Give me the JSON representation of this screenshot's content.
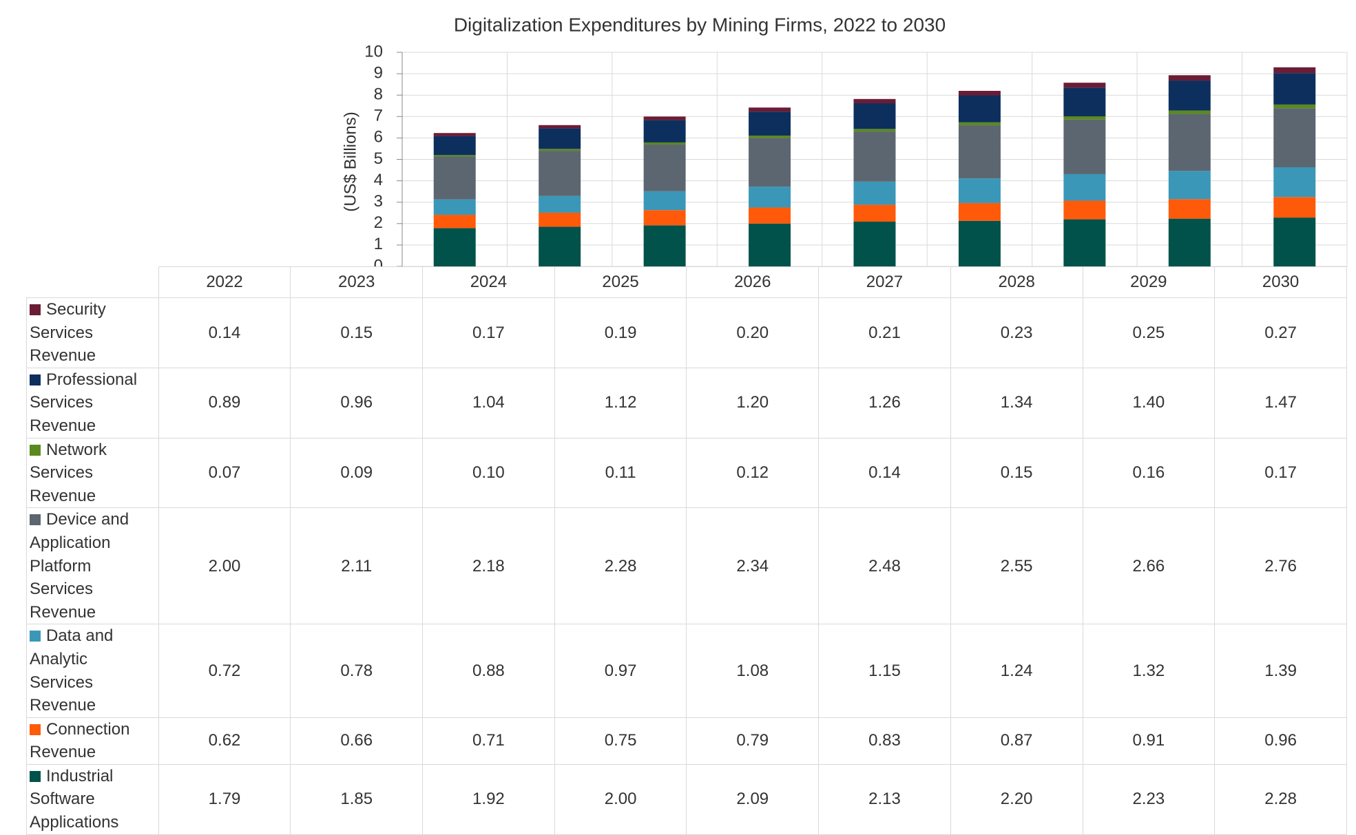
{
  "chart_data": {
    "type": "bar",
    "stacked": true,
    "title": "Digitalization Expenditures by Mining Firms, 2022 to 2030",
    "y_label": "(US$ Billions)",
    "categories": [
      "2022",
      "2023",
      "2024",
      "2025",
      "2026",
      "2027",
      "2028",
      "2029",
      "2030"
    ],
    "ylim": [
      0,
      10
    ],
    "yticks": [
      0,
      1,
      2,
      3,
      4,
      5,
      6,
      7,
      8,
      9,
      10
    ],
    "grid": true,
    "series": [
      {
        "name": "Security Services Revenue",
        "color": "#6b1d35",
        "values": [
          0.14,
          0.15,
          0.17,
          0.19,
          0.2,
          0.21,
          0.23,
          0.25,
          0.27
        ],
        "value_labels": [
          "0.14",
          "0.15",
          "0.17",
          "0.19",
          "0.20",
          "0.21",
          "0.23",
          "0.25",
          "0.27"
        ]
      },
      {
        "name": "Professional Services Revenue",
        "color": "#0d2f5e",
        "values": [
          0.89,
          0.96,
          1.04,
          1.12,
          1.2,
          1.26,
          1.34,
          1.4,
          1.47
        ],
        "value_labels": [
          "0.89",
          "0.96",
          "1.04",
          "1.12",
          "1.20",
          "1.26",
          "1.34",
          "1.40",
          "1.47"
        ]
      },
      {
        "name": "Network Services Revenue",
        "color": "#5a8a1f",
        "values": [
          0.07,
          0.09,
          0.1,
          0.11,
          0.12,
          0.14,
          0.15,
          0.16,
          0.17
        ],
        "value_labels": [
          "0.07",
          "0.09",
          "0.10",
          "0.11",
          "0.12",
          "0.14",
          "0.15",
          "0.16",
          "0.17"
        ]
      },
      {
        "name": "Device and Application Platform Services Revenue",
        "color": "#5c6670",
        "values": [
          2.0,
          2.11,
          2.18,
          2.28,
          2.34,
          2.48,
          2.55,
          2.66,
          2.76
        ],
        "value_labels": [
          "2.00",
          "2.11",
          "2.18",
          "2.28",
          "2.34",
          "2.48",
          "2.55",
          "2.66",
          "2.76"
        ]
      },
      {
        "name": "Data and Analytic Services Revenue",
        "color": "#3a97b8",
        "values": [
          0.72,
          0.78,
          0.88,
          0.97,
          1.08,
          1.15,
          1.24,
          1.32,
          1.39
        ],
        "value_labels": [
          "0.72",
          "0.78",
          "0.88",
          "0.97",
          "1.08",
          "1.15",
          "1.24",
          "1.32",
          "1.39"
        ]
      },
      {
        "name": "Connection Revenue",
        "color": "#ff5a0a",
        "values": [
          0.62,
          0.66,
          0.71,
          0.75,
          0.79,
          0.83,
          0.87,
          0.91,
          0.96
        ],
        "value_labels": [
          "0.62",
          "0.66",
          "0.71",
          "0.75",
          "0.79",
          "0.83",
          "0.87",
          "0.91",
          "0.96"
        ]
      },
      {
        "name": "Industrial Software Applications",
        "color": "#00524a",
        "values": [
          1.79,
          1.85,
          1.92,
          2.0,
          2.09,
          2.13,
          2.2,
          2.23,
          2.28
        ],
        "value_labels": [
          "1.79",
          "1.85",
          "1.92",
          "2.00",
          "2.09",
          "2.13",
          "2.20",
          "2.23",
          "2.28"
        ]
      }
    ]
  }
}
